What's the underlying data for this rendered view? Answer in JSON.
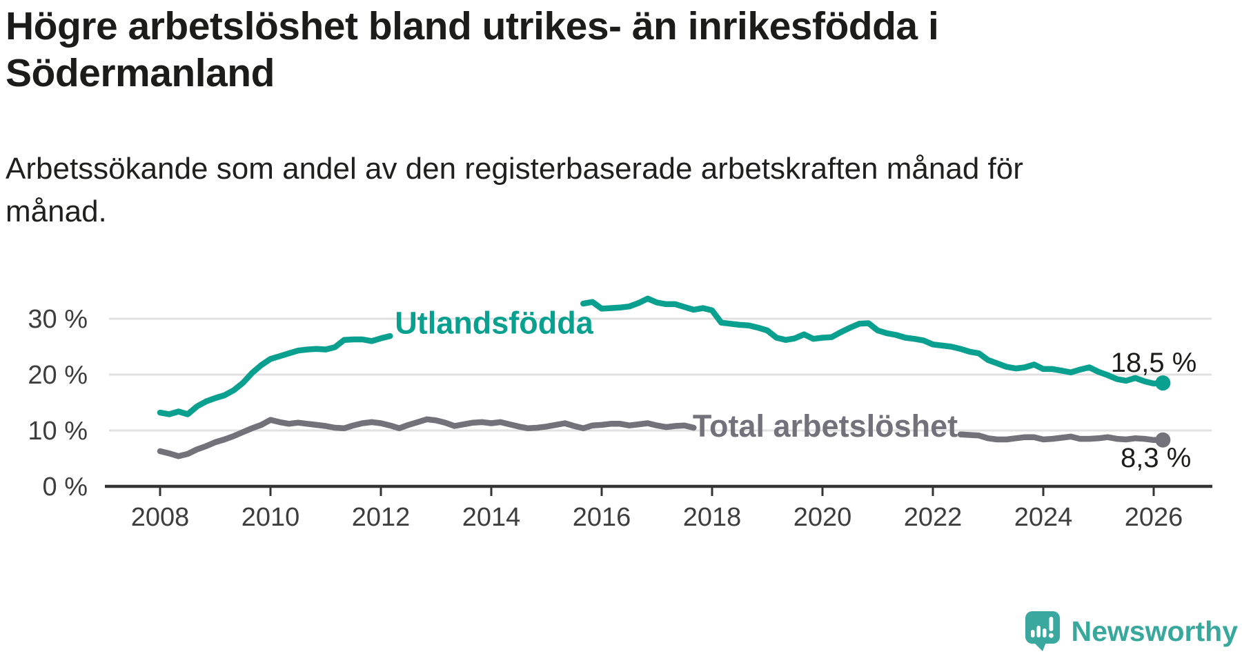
{
  "header": {
    "title_line1": "Högre arbetslöshet bland utrikes- än inrikesfödda i",
    "title_line2": "Södermanland",
    "subtitle_line1": "Arbetssökande som andel av den registerbaserade arbetskraften månad för",
    "subtitle_line2": "månad."
  },
  "colors": {
    "accent_teal": "#0aa08f",
    "neutral_gray": "#73717a",
    "axis": "#333333",
    "axis_label": "#3d3d3d",
    "gridline": "#e0e0e0",
    "text": "#1c1c1a",
    "logo_teal": "#38a79c"
  },
  "chart_data": {
    "type": "line",
    "title": "Högre arbetslöshet bland utrikes- än inrikesfödda i Södermanland",
    "subtitle": "Arbetssökande som andel av den registerbaserade arbetskraften månad för månad.",
    "xlabel": "",
    "ylabel": "",
    "unit": "%",
    "grid": "horizontal",
    "legend_position": "inline-labels",
    "x_start": 2008,
    "x_step_years": 0.1666667,
    "xlim": [
      2007.0,
      2027.2
    ],
    "ylim": [
      0,
      36
    ],
    "x_ticks": [
      "2008",
      "2010",
      "2012",
      "2014",
      "2016",
      "2018",
      "2020",
      "2022",
      "2024",
      "2026"
    ],
    "y_ticks": [
      {
        "value": 0,
        "label": "0 %"
      },
      {
        "value": 10,
        "label": "10 %"
      },
      {
        "value": 20,
        "label": "20 %"
      },
      {
        "value": 30,
        "label": "30 %"
      }
    ],
    "series": [
      {
        "id": "utlandsfodda",
        "name": "Utlandsfödda",
        "color": "#0aa08f",
        "end_label": "18,5 %",
        "end_value": 18.5,
        "label_anchor": {
          "year": 2014.05,
          "value": 29.3
        },
        "label_gap_years": [
          2012.3,
          2015.55
        ],
        "values": [
          13.2,
          12.9,
          13.4,
          12.9,
          14.3,
          15.2,
          15.8,
          16.3,
          17.2,
          18.5,
          20.3,
          21.7,
          22.8,
          23.3,
          23.8,
          24.3,
          24.5,
          24.6,
          24.5,
          24.9,
          26.2,
          26.3,
          26.3,
          26.0,
          26.5,
          26.9,
          27.5,
          27.2,
          27.5,
          27.8,
          28.2,
          28.6,
          29.0,
          29.4,
          29.8,
          30.2,
          30.6,
          30.9,
          31.2,
          31.5,
          31.8,
          32.0,
          32.2,
          32.3,
          32.4,
          32.5,
          32.7,
          33.0,
          31.8,
          31.9,
          32.0,
          32.2,
          32.8,
          33.6,
          32.9,
          32.6,
          32.6,
          32.1,
          31.6,
          31.9,
          31.5,
          29.3,
          29.1,
          28.9,
          28.8,
          28.4,
          27.9,
          26.6,
          26.2,
          26.5,
          27.2,
          26.4,
          26.6,
          26.7,
          27.6,
          28.4,
          29.1,
          29.2,
          27.9,
          27.4,
          27.1,
          26.6,
          26.4,
          26.1,
          25.4,
          25.2,
          25.0,
          24.6,
          24.1,
          23.8,
          22.6,
          22.0,
          21.4,
          21.1,
          21.3,
          21.8,
          21.0,
          21.0,
          20.7,
          20.4,
          20.9,
          21.3,
          20.5,
          19.9,
          19.2,
          18.9,
          19.4,
          18.8,
          18.4,
          18.5
        ]
      },
      {
        "id": "total-arbetsloshet",
        "name": "Total arbetslöshet",
        "color": "#73717a",
        "end_label": "8,3 %",
        "end_value": 8.3,
        "label_anchor": {
          "year": 2020.05,
          "value": 10.85
        },
        "label_gap_years": [
          2017.7,
          2022.45
        ],
        "values": [
          6.3,
          5.9,
          5.4,
          5.8,
          6.6,
          7.2,
          7.9,
          8.4,
          9.0,
          9.7,
          10.4,
          11.0,
          11.9,
          11.5,
          11.2,
          11.4,
          11.2,
          11.0,
          10.8,
          10.5,
          10.4,
          10.9,
          11.3,
          11.5,
          11.3,
          10.9,
          10.4,
          11.0,
          11.5,
          12.0,
          11.8,
          11.4,
          10.8,
          11.1,
          11.4,
          11.5,
          11.3,
          11.5,
          11.1,
          10.7,
          10.4,
          10.5,
          10.7,
          11.0,
          11.3,
          10.8,
          10.4,
          10.9,
          11.0,
          11.2,
          11.2,
          10.9,
          11.1,
          11.3,
          10.9,
          10.6,
          10.8,
          10.9,
          10.5,
          10.4,
          10.3,
          10.2,
          10.1,
          10.0,
          10.0,
          9.9,
          9.8,
          9.7,
          9.7,
          9.6,
          9.6,
          9.7,
          9.9,
          10.2,
          10.6,
          10.5,
          10.4,
          10.3,
          10.2,
          10.0,
          9.9,
          9.8,
          9.7,
          9.6,
          9.5,
          9.4,
          9.4,
          9.3,
          9.2,
          9.1,
          8.6,
          8.4,
          8.4,
          8.6,
          8.8,
          8.8,
          8.4,
          8.5,
          8.7,
          8.9,
          8.5,
          8.5,
          8.6,
          8.8,
          8.5,
          8.4,
          8.6,
          8.5,
          8.3,
          8.3
        ]
      }
    ]
  },
  "logo": {
    "icon": "newsworthy-speech-bubble-bar-chart-icon",
    "text": "Newsworthy"
  }
}
